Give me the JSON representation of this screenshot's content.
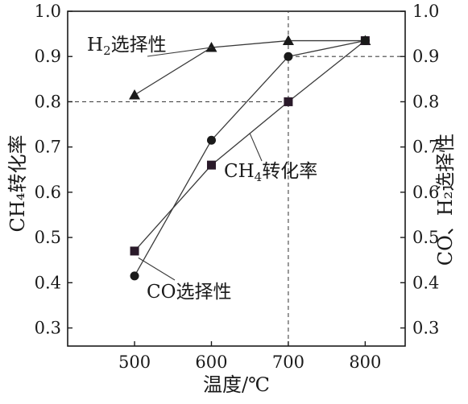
{
  "chart_data": {
    "type": "line",
    "x": [
      500,
      600,
      700,
      800
    ],
    "xlabel": "温度/℃",
    "ylabel_left": "CH₄转化率",
    "ylabel_right": "CO、H₂选择性",
    "xlim": [
      413,
      852
    ],
    "ylim": [
      0.26,
      1.0
    ],
    "x_ticks": [
      "500",
      "600",
      "700",
      "800"
    ],
    "y_ticks_left": [
      "0.3",
      "0.4",
      "0.5",
      "0.6",
      "0.7",
      "0.8",
      "0.9",
      "1.0"
    ],
    "y_ticks_right": [
      "0.3",
      "0.4",
      "0.5",
      "0.6",
      "0.7",
      "0.8",
      "0.9",
      "1.0"
    ],
    "grid": false,
    "series": [
      {
        "name": "H₂选择性",
        "marker": "triangle",
        "axis": "right",
        "values": [
          0.815,
          0.92,
          0.935,
          0.935
        ]
      },
      {
        "name": "CH₄转化率",
        "marker": "square",
        "axis": "left",
        "values": [
          0.47,
          0.66,
          0.8,
          0.935
        ]
      },
      {
        "name": "CO选择性",
        "marker": "circle",
        "axis": "right",
        "values": [
          0.415,
          0.715,
          0.9,
          0.935
        ]
      }
    ],
    "reference_lines": [
      {
        "orientation": "horizontal",
        "value": 0.8,
        "from_x": 413,
        "to_x": 700
      },
      {
        "orientation": "horizontal",
        "value": 0.9,
        "from_x": 700,
        "to_x": 852
      },
      {
        "orientation": "vertical",
        "value": 700,
        "from_y": 0.26,
        "to_y": 1.0
      }
    ],
    "annotations": [
      {
        "series": "H₂选择性",
        "label_main": "H",
        "label_sub": "2",
        "label_tail": "选择性",
        "leader_x": 600,
        "leader_y": 0.92
      },
      {
        "series": "CH₄转化率",
        "label_main": "CH",
        "label_sub": "4",
        "label_tail": "转化率",
        "leader_x": 650,
        "leader_y": 0.73
      },
      {
        "series": "CO选择性",
        "label_main": "CO选择性",
        "label_sub": "",
        "label_tail": "",
        "leader_x": 505,
        "leader_y": 0.455
      }
    ],
    "colors": {
      "line": "#3a3a3a",
      "marker": "#1a1a1a",
      "square_marker": "#2a1a2a",
      "axis": "#1a1a1a",
      "reference": "#444444"
    }
  }
}
